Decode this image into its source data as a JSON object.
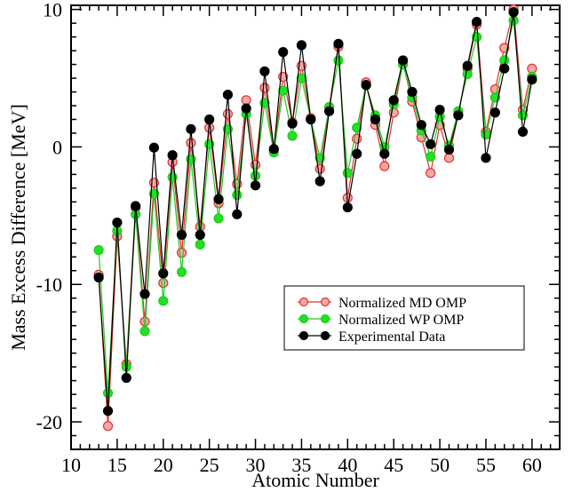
{
  "chart_data": {
    "type": "line",
    "xlabel": "Atomic Number",
    "ylabel": "Mass Excess Difference [MeV]",
    "xlim": [
      10,
      63
    ],
    "ylim": [
      -22,
      10.3
    ],
    "x_ticks": [
      10,
      15,
      20,
      25,
      30,
      35,
      40,
      45,
      50,
      55,
      60
    ],
    "y_ticks": [
      -20,
      -10,
      0,
      10
    ],
    "grid": false,
    "legend_position": "lower-right",
    "x": [
      13,
      14,
      15,
      16,
      17,
      18,
      19,
      20,
      21,
      22,
      23,
      24,
      25,
      26,
      27,
      28,
      29,
      30,
      31,
      32,
      33,
      34,
      35,
      36,
      37,
      38,
      39,
      40,
      41,
      42,
      43,
      44,
      45,
      46,
      47,
      48,
      49,
      50,
      51,
      52,
      53,
      54,
      55,
      56,
      57,
      58,
      59,
      60
    ],
    "series": [
      {
        "name": "Normalized MD OMP",
        "color": "#e03030",
        "fill": "#f4a8a8",
        "values": [
          -9.3,
          -20.3,
          -6.5,
          -15.8,
          -4.4,
          -12.7,
          -2.6,
          -9.9,
          -1.1,
          -7.7,
          0.3,
          -5.8,
          1.4,
          -4.1,
          2.4,
          -2.7,
          3.4,
          -1.3,
          4.3,
          -0.3,
          5.1,
          1.8,
          5.9,
          2.1,
          -1.6,
          2.9,
          7.3,
          -3.7,
          0.6,
          4.7,
          1.6,
          -1.4,
          2.5,
          6.1,
          3.3,
          0.7,
          -1.9,
          1.6,
          -0.8,
          2.4,
          5.7,
          8.9,
          1.1,
          4.2,
          7.2,
          10.0,
          2.7,
          5.7
        ]
      },
      {
        "name": "Normalized WP OMP",
        "color": "#22c822",
        "fill": "#22e022",
        "values": [
          -7.5,
          -17.9,
          -6.1,
          -16.0,
          -4.9,
          -13.4,
          -3.4,
          -11.2,
          -2.2,
          -9.1,
          -0.9,
          -7.1,
          0.2,
          -5.2,
          1.3,
          -3.5,
          2.4,
          -2.1,
          3.2,
          -0.4,
          4.1,
          0.8,
          5.0,
          2.0,
          -0.8,
          2.9,
          6.3,
          -1.9,
          1.4,
          4.5,
          2.3,
          0.0,
          3.1,
          6.0,
          3.6,
          1.2,
          -0.7,
          2.2,
          0.1,
          2.6,
          5.3,
          8.0,
          0.9,
          3.6,
          6.3,
          9.2,
          2.3,
          5.1
        ]
      },
      {
        "name": "Experimental Data",
        "color": "#000000",
        "fill": "#000000",
        "values": [
          -9.5,
          -19.2,
          -5.5,
          -16.8,
          -4.3,
          -10.7,
          -0.05,
          -9.2,
          -0.6,
          -6.4,
          1.3,
          -6.4,
          2.0,
          -3.8,
          3.8,
          -4.9,
          2.8,
          -2.8,
          5.5,
          -0.15,
          6.9,
          1.7,
          7.4,
          2.0,
          -2.5,
          2.6,
          7.5,
          -4.4,
          -0.5,
          4.5,
          2.0,
          -0.5,
          3.4,
          6.3,
          4.0,
          1.6,
          0.2,
          2.7,
          -0.2,
          2.3,
          5.9,
          9.1,
          -0.8,
          2.5,
          5.7,
          9.8,
          1.1,
          4.9
        ]
      }
    ]
  }
}
